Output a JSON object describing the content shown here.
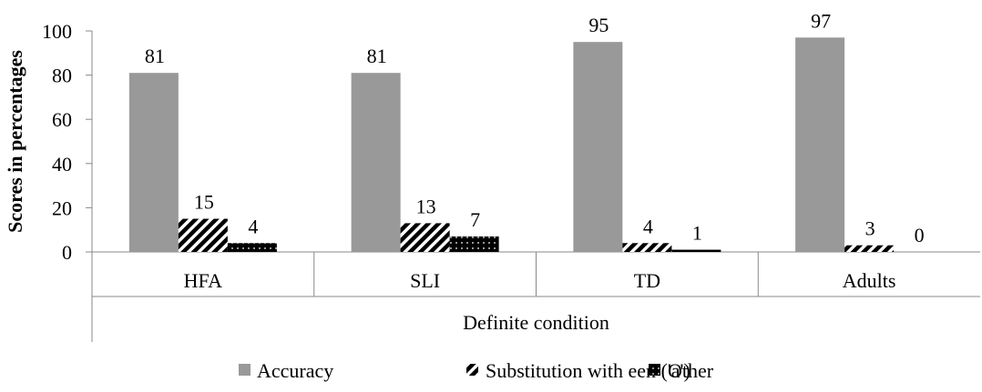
{
  "chart_data": {
    "type": "bar",
    "categories": [
      "HFA",
      "SLI",
      "TD",
      "Adults"
    ],
    "group_label": "Definite condition",
    "series": [
      {
        "name": "Accuracy",
        "values": [
          81,
          81,
          95,
          97
        ],
        "color": "#999999",
        "pattern": "solid"
      },
      {
        "name": "Substitution with een ('a')",
        "values": [
          15,
          13,
          4,
          3
        ],
        "color": "#000000",
        "pattern": "diagonal-stripes"
      },
      {
        "name": "Other",
        "values": [
          4,
          7,
          1,
          0
        ],
        "color": "#000000",
        "pattern": "dotted"
      }
    ],
    "data_labels": [
      [
        "81",
        "81",
        "95",
        "97"
      ],
      [
        "15",
        "13",
        "4",
        "3"
      ],
      [
        "4",
        "7",
        "1",
        "0"
      ]
    ],
    "ylabel": "Scores in percentages",
    "ylim": [
      0,
      100
    ],
    "yticks": [
      "0",
      "20",
      "40",
      "60",
      "80",
      "100"
    ],
    "grid": false,
    "legend_position": "bottom"
  }
}
